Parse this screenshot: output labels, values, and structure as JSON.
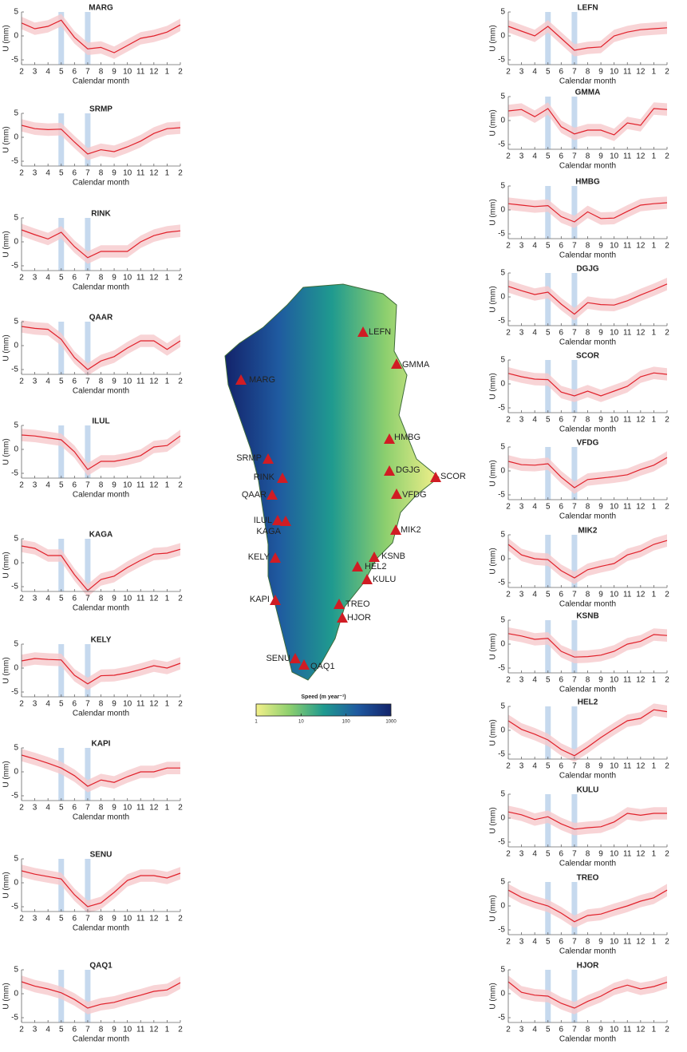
{
  "chart_data": [
    {
      "type": "line",
      "title": "MARG",
      "xlabel": "Calendar month",
      "ylabel": "U (mm)",
      "categories": [
        2,
        3,
        4,
        5,
        6,
        7,
        8,
        9,
        10,
        11,
        12,
        1,
        2
      ],
      "ylim": [
        -6,
        5
      ],
      "yticks": [
        -5,
        0,
        5
      ],
      "highlight": [
        5,
        7
      ],
      "highlight_color": "#c6d9ee",
      "band_color": "#f6c9cc",
      "series": [
        {
          "color": "#e0202a",
          "values": [
            2.7,
            1.5,
            2,
            3.3,
            -0.3,
            -2.7,
            -2.4,
            -3.5,
            -2,
            -0.5,
            0,
            0.8,
            2.3
          ],
          "error": 1.3
        }
      ]
    },
    {
      "type": "line",
      "title": "SRMP",
      "xlabel": "Calendar month",
      "ylabel": "U (mm)",
      "categories": [
        2,
        3,
        4,
        5,
        6,
        7,
        8,
        9,
        10,
        11,
        12,
        1,
        2
      ],
      "ylim": [
        -6,
        5
      ],
      "yticks": [
        -5,
        0,
        5
      ],
      "highlight": [
        5,
        7
      ],
      "highlight_color": "#c6d9ee",
      "band_color": "#f6c9cc",
      "series": [
        {
          "color": "#e0202a",
          "values": [
            2.5,
            1.8,
            1.6,
            1.7,
            -1,
            -3.5,
            -2.6,
            -3,
            -2,
            -0.8,
            0.8,
            1.8,
            2
          ],
          "error": 1.3
        }
      ]
    },
    {
      "type": "line",
      "title": "RINK",
      "xlabel": "Calendar month",
      "ylabel": "U (mm)",
      "categories": [
        2,
        3,
        4,
        5,
        6,
        7,
        8,
        9,
        10,
        11,
        12,
        1,
        2
      ],
      "ylim": [
        -6,
        5
      ],
      "yticks": [
        -5,
        0,
        5
      ],
      "highlight": [
        5,
        7
      ],
      "highlight_color": "#c6d9ee",
      "band_color": "#f6c9cc",
      "series": [
        {
          "color": "#e0202a",
          "values": [
            2.5,
            1.5,
            0.6,
            2,
            -1,
            -3.3,
            -2,
            -2,
            -2,
            0,
            1.3,
            2,
            2.3
          ],
          "error": 1.3
        }
      ]
    },
    {
      "type": "line",
      "title": "QAAR",
      "xlabel": "Calendar month",
      "ylabel": "U (mm)",
      "categories": [
        2,
        3,
        4,
        5,
        6,
        7,
        8,
        9,
        10,
        11,
        12,
        1,
        2
      ],
      "ylim": [
        -6,
        5
      ],
      "yticks": [
        -5,
        0,
        5
      ],
      "highlight": [
        5,
        7
      ],
      "highlight_color": "#c6d9ee",
      "band_color": "#f6c9cc",
      "series": [
        {
          "color": "#e0202a",
          "values": [
            4,
            3.6,
            3.4,
            1.3,
            -2.5,
            -5,
            -3.2,
            -2.3,
            -0.5,
            1,
            1,
            -0.8,
            1
          ],
          "error": 1.3
        }
      ]
    },
    {
      "type": "line",
      "title": "ILUL",
      "xlabel": "Calendar month",
      "ylabel": "U (mm)",
      "categories": [
        2,
        3,
        4,
        5,
        6,
        7,
        8,
        9,
        10,
        11,
        12,
        1,
        2
      ],
      "ylim": [
        -6,
        5
      ],
      "yticks": [
        -5,
        0,
        5
      ],
      "highlight": [
        5,
        7
      ],
      "highlight_color": "#c6d9ee",
      "band_color": "#f6c9cc",
      "series": [
        {
          "color": "#e0202a",
          "values": [
            3,
            2.8,
            2.4,
            2,
            -0.5,
            -4.2,
            -2.5,
            -2.5,
            -2,
            -1.3,
            0.5,
            0.8,
            2.8
          ],
          "error": 1.3
        }
      ]
    },
    {
      "type": "line",
      "title": "KAGA",
      "xlabel": "Calendar month",
      "ylabel": "U (mm)",
      "categories": [
        2,
        3,
        4,
        5,
        6,
        7,
        8,
        9,
        10,
        11,
        12,
        1,
        2
      ],
      "ylim": [
        -6,
        5
      ],
      "yticks": [
        -5,
        0,
        5
      ],
      "highlight": [
        5,
        7
      ],
      "highlight_color": "#c6d9ee",
      "band_color": "#f6c9cc",
      "series": [
        {
          "color": "#e0202a",
          "values": [
            3.5,
            3,
            1.5,
            1.5,
            -2.5,
            -5.8,
            -3.5,
            -2.8,
            -1,
            0.5,
            1.8,
            2,
            2.8
          ],
          "error": 1.3
        }
      ]
    },
    {
      "type": "line",
      "title": "KELY",
      "xlabel": "Calendar month",
      "ylabel": "U (mm)",
      "categories": [
        2,
        3,
        4,
        5,
        6,
        7,
        8,
        9,
        10,
        11,
        12,
        1,
        2
      ],
      "ylim": [
        -6,
        5
      ],
      "yticks": [
        -5,
        0,
        5
      ],
      "highlight": [
        5,
        7
      ],
      "highlight_color": "#c6d9ee",
      "band_color": "#f6c9cc",
      "series": [
        {
          "color": "#e0202a",
          "values": [
            1.5,
            2,
            1.8,
            1.7,
            -1.5,
            -3.3,
            -1.6,
            -1.5,
            -1,
            -0.3,
            0.5,
            0,
            1
          ],
          "error": 1.3
        }
      ]
    },
    {
      "type": "line",
      "title": "KAPI",
      "xlabel": "Calendar month",
      "ylabel": "U (mm)",
      "categories": [
        2,
        3,
        4,
        5,
        6,
        7,
        8,
        9,
        10,
        11,
        12,
        1,
        2
      ],
      "ylim": [
        -6,
        5
      ],
      "yticks": [
        -5,
        0,
        5
      ],
      "highlight": [
        5,
        7
      ],
      "highlight_color": "#c6d9ee",
      "band_color": "#f6c9cc",
      "series": [
        {
          "color": "#e0202a",
          "values": [
            3.5,
            2.7,
            1.8,
            0.8,
            -0.8,
            -3,
            -1.7,
            -2.2,
            -1,
            0,
            0,
            0.8,
            0.8
          ],
          "error": 1.3
        }
      ]
    },
    {
      "type": "line",
      "title": "SENU",
      "xlabel": "Calendar month",
      "ylabel": "U (mm)",
      "categories": [
        2,
        3,
        4,
        5,
        6,
        7,
        8,
        9,
        10,
        11,
        12,
        1,
        2
      ],
      "ylim": [
        -6,
        5
      ],
      "yticks": [
        -5,
        0,
        5
      ],
      "highlight": [
        5,
        7
      ],
      "highlight_color": "#c6d9ee",
      "band_color": "#f6c9cc",
      "series": [
        {
          "color": "#e0202a",
          "values": [
            2.5,
            1.8,
            1.3,
            0.8,
            -2.5,
            -5,
            -4.2,
            -2,
            0.5,
            1.5,
            1.5,
            1,
            2
          ],
          "error": 1.3
        }
      ]
    },
    {
      "type": "line",
      "title": "QAQ1",
      "xlabel": "Calendar month",
      "ylabel": "U (mm)",
      "categories": [
        2,
        3,
        4,
        5,
        6,
        7,
        8,
        9,
        10,
        11,
        12,
        1,
        2
      ],
      "ylim": [
        -6,
        5
      ],
      "yticks": [
        -5,
        0,
        5
      ],
      "highlight": [
        5,
        7
      ],
      "highlight_color": "#c6d9ee",
      "band_color": "#f6c9cc",
      "series": [
        {
          "color": "#e0202a",
          "values": [
            2.5,
            1.6,
            1,
            0.2,
            -1.2,
            -3,
            -2.2,
            -1.8,
            -1,
            -0.3,
            0.5,
            0.8,
            2.3
          ],
          "error": 1.3
        }
      ]
    },
    {
      "type": "line",
      "title": "LEFN",
      "xlabel": "Calendar month",
      "ylabel": "U (mm)",
      "categories": [
        2,
        3,
        4,
        5,
        6,
        7,
        8,
        9,
        10,
        11,
        12,
        1,
        2
      ],
      "ylim": [
        -6,
        5
      ],
      "yticks": [
        -5,
        0,
        5
      ],
      "highlight": [
        5,
        7
      ],
      "highlight_color": "#c6d9ee",
      "band_color": "#f6c9cc",
      "series": [
        {
          "color": "#e0202a",
          "values": [
            2,
            1,
            0,
            2,
            -0.5,
            -3,
            -2.5,
            -2.3,
            0,
            0.8,
            1.3,
            1.5,
            1.7
          ],
          "error": 1.3
        }
      ]
    },
    {
      "type": "line",
      "title": "GMMA",
      "xlabel": "Calendar month",
      "ylabel": "U (mm)",
      "categories": [
        2,
        3,
        4,
        5,
        6,
        7,
        8,
        9,
        10,
        11,
        12,
        1,
        2
      ],
      "ylim": [
        -6,
        5
      ],
      "yticks": [
        -5,
        0,
        5
      ],
      "highlight": [
        5,
        7
      ],
      "highlight_color": "#c6d9ee",
      "band_color": "#f6c9cc",
      "series": [
        {
          "color": "#e0202a",
          "values": [
            2,
            2.3,
            0.8,
            2.5,
            -1.3,
            -2.8,
            -2,
            -2,
            -3,
            -0.5,
            -1,
            2.5,
            2.3
          ],
          "error": 1.3
        }
      ]
    },
    {
      "type": "line",
      "title": "HMBG",
      "xlabel": "Calendar month",
      "ylabel": "U (mm)",
      "categories": [
        2,
        3,
        4,
        5,
        6,
        7,
        8,
        9,
        10,
        11,
        12,
        1,
        2
      ],
      "ylim": [
        -6,
        5
      ],
      "yticks": [
        -5,
        0,
        5
      ],
      "highlight": [
        5,
        7
      ],
      "highlight_color": "#c6d9ee",
      "band_color": "#f6c9cc",
      "series": [
        {
          "color": "#e0202a",
          "values": [
            1.3,
            1,
            0.7,
            0.9,
            -1.4,
            -2.5,
            -0.4,
            -1.8,
            -1.7,
            -0.3,
            1,
            1.3,
            1.5
          ],
          "error": 1.3
        }
      ]
    },
    {
      "type": "line",
      "title": "DGJG",
      "xlabel": "Calendar month",
      "ylabel": "U (mm)",
      "categories": [
        2,
        3,
        4,
        5,
        6,
        7,
        8,
        9,
        10,
        11,
        12,
        1,
        2
      ],
      "ylim": [
        -6,
        5
      ],
      "yticks": [
        -5,
        0,
        5
      ],
      "highlight": [
        5,
        7
      ],
      "highlight_color": "#c6d9ee",
      "band_color": "#f6c9cc",
      "series": [
        {
          "color": "#e0202a",
          "values": [
            2.2,
            1.3,
            0.5,
            1,
            -1.5,
            -3.6,
            -1.2,
            -1.6,
            -1.7,
            -0.8,
            0.4,
            1.5,
            2.7
          ],
          "error": 1.3
        }
      ]
    },
    {
      "type": "line",
      "title": "SCOR",
      "xlabel": "Calendar month",
      "ylabel": "U (mm)",
      "categories": [
        2,
        3,
        4,
        5,
        6,
        7,
        8,
        9,
        10,
        11,
        12,
        1,
        2
      ],
      "ylim": [
        -6,
        5
      ],
      "yticks": [
        -5,
        0,
        5
      ],
      "highlight": [
        5,
        7
      ],
      "highlight_color": "#c6d9ee",
      "band_color": "#f6c9cc",
      "series": [
        {
          "color": "#e0202a",
          "values": [
            2.2,
            1.5,
            1,
            0.9,
            -1.7,
            -2.5,
            -1.5,
            -2.5,
            -1.5,
            -0.5,
            1.5,
            2.3,
            2
          ],
          "error": 1.3
        }
      ]
    },
    {
      "type": "line",
      "title": "VFDG",
      "xlabel": "Calendar month",
      "ylabel": "U (mm)",
      "categories": [
        2,
        3,
        4,
        5,
        6,
        7,
        8,
        9,
        10,
        11,
        12,
        1,
        2
      ],
      "ylim": [
        -6,
        5
      ],
      "yticks": [
        -5,
        0,
        5
      ],
      "highlight": [
        5,
        7
      ],
      "highlight_color": "#c6d9ee",
      "band_color": "#f6c9cc",
      "series": [
        {
          "color": "#e0202a",
          "values": [
            2,
            1.3,
            1.2,
            1.5,
            -1.3,
            -3.5,
            -1.8,
            -1.5,
            -1.2,
            -0.8,
            0.3,
            1.2,
            2.8
          ],
          "error": 1.3
        }
      ]
    },
    {
      "type": "line",
      "title": "MIK2",
      "xlabel": "Calendar month",
      "ylabel": "U (mm)",
      "categories": [
        2,
        3,
        4,
        5,
        6,
        7,
        8,
        9,
        10,
        11,
        12,
        1,
        2
      ],
      "ylim": [
        -6,
        5
      ],
      "yticks": [
        -5,
        0,
        5
      ],
      "highlight": [
        5,
        7
      ],
      "highlight_color": "#c6d9ee",
      "band_color": "#f6c9cc",
      "series": [
        {
          "color": "#e0202a",
          "values": [
            3,
            0.8,
            0,
            -0.2,
            -2.5,
            -4,
            -2.3,
            -1.6,
            -1,
            0.8,
            1.6,
            3,
            3.8
          ],
          "error": 1.3
        }
      ]
    },
    {
      "type": "line",
      "title": "KSNB",
      "xlabel": "Calendar month",
      "ylabel": "U (mm)",
      "categories": [
        2,
        3,
        4,
        5,
        6,
        7,
        8,
        9,
        10,
        11,
        12,
        1,
        2
      ],
      "ylim": [
        -6,
        5
      ],
      "yticks": [
        -5,
        0,
        5
      ],
      "highlight": [
        5,
        7
      ],
      "highlight_color": "#c6d9ee",
      "band_color": "#f6c9cc",
      "series": [
        {
          "color": "#e0202a",
          "values": [
            2.2,
            1.7,
            1,
            1.2,
            -1.5,
            -2.7,
            -2.6,
            -2.3,
            -1.5,
            0,
            0.6,
            2,
            1.8
          ],
          "error": 1.3
        }
      ]
    },
    {
      "type": "line",
      "title": "HEL2",
      "xlabel": "Calendar month",
      "ylabel": "U (mm)",
      "categories": [
        2,
        3,
        4,
        5,
        6,
        7,
        8,
        9,
        10,
        11,
        12,
        1,
        2
      ],
      "ylim": [
        -6,
        5
      ],
      "yticks": [
        -5,
        0,
        5
      ],
      "highlight": [
        5,
        7
      ],
      "highlight_color": "#c6d9ee",
      "band_color": "#f6c9cc",
      "series": [
        {
          "color": "#e0202a",
          "values": [
            2,
            0.2,
            -0.8,
            -2,
            -4,
            -5.3,
            -3.5,
            -1.5,
            0.3,
            2,
            2.5,
            4.3,
            3.9
          ],
          "error": 1.3
        }
      ]
    },
    {
      "type": "line",
      "title": "KULU",
      "xlabel": "Calendar month",
      "ylabel": "U (mm)",
      "categories": [
        2,
        3,
        4,
        5,
        6,
        7,
        8,
        9,
        10,
        11,
        12,
        1,
        2
      ],
      "ylim": [
        -6,
        5
      ],
      "yticks": [
        -5,
        0,
        5
      ],
      "highlight": [
        5,
        7
      ],
      "highlight_color": "#c6d9ee",
      "band_color": "#f6c9cc",
      "series": [
        {
          "color": "#e0202a",
          "values": [
            1.3,
            0.7,
            -0.3,
            0.3,
            -1.2,
            -2.3,
            -2,
            -1.8,
            -0.8,
            1,
            0.6,
            1,
            1
          ],
          "error": 1.3
        }
      ]
    },
    {
      "type": "line",
      "title": "TREO",
      "xlabel": "Calendar month",
      "ylabel": "U (mm)",
      "categories": [
        2,
        3,
        4,
        5,
        6,
        7,
        8,
        9,
        10,
        11,
        12,
        1,
        2
      ],
      "ylim": [
        -6,
        5
      ],
      "yticks": [
        -5,
        0,
        5
      ],
      "highlight": [
        5,
        7
      ],
      "highlight_color": "#c6d9ee",
      "band_color": "#f6c9cc",
      "series": [
        {
          "color": "#e0202a",
          "values": [
            3.3,
            1.8,
            0.8,
            0,
            -1.5,
            -3.3,
            -2,
            -1.7,
            -0.8,
            0,
            1,
            1.7,
            3.3
          ],
          "error": 1.3
        }
      ]
    },
    {
      "type": "line",
      "title": "HJOR",
      "xlabel": "Calendar month",
      "ylabel": "U (mm)",
      "categories": [
        2,
        3,
        4,
        5,
        6,
        7,
        8,
        9,
        10,
        11,
        12,
        1,
        2
      ],
      "ylim": [
        -6,
        5
      ],
      "yticks": [
        -5,
        0,
        5
      ],
      "highlight": [
        5,
        7
      ],
      "highlight_color": "#c6d9ee",
      "band_color": "#f6c9cc",
      "series": [
        {
          "color": "#e0202a",
          "values": [
            2.5,
            0.3,
            -0.3,
            -0.5,
            -2,
            -3,
            -1.6,
            -0.5,
            1,
            1.8,
            1,
            1.5,
            2.4
          ],
          "error": 1.3
        }
      ]
    }
  ],
  "map": {
    "stations": [
      "LEFN",
      "GMMA",
      "MARG",
      "HMBG",
      "SRMP",
      "RINK",
      "DGJG",
      "SCOR",
      "QAAR",
      "VFDG",
      "ILUL",
      "KAGA",
      "MIK2",
      "KSNB",
      "KELY",
      "HEL2",
      "KULU",
      "KAPI",
      "TREO",
      "HJOR",
      "SENU",
      "QAQ1"
    ],
    "marker_color": "#d01c24",
    "colorbar": {
      "title": "Speed (m year⁻¹)",
      "lim": [
        1,
        1000
      ],
      "ticks": [
        1,
        10,
        100,
        1000
      ],
      "log": true,
      "colors": [
        "#f3f08a",
        "#8ccf6e",
        "#1f9a8f",
        "#1f5aa0",
        "#13236b"
      ]
    }
  }
}
